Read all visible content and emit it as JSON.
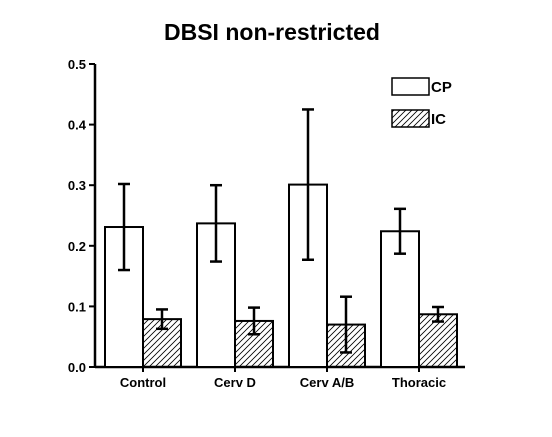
{
  "chart_data": {
    "type": "bar",
    "title": "DBSI non-restricted",
    "xlabel": "",
    "ylabel": "",
    "ylim": [
      0,
      0.5
    ],
    "yticks": [
      "0.0",
      "0.1",
      "0.2",
      "0.3",
      "0.4",
      "0.5"
    ],
    "categories": [
      "Control",
      "Cerv D",
      "Cerv A/B",
      "Thoracic"
    ],
    "series": [
      {
        "name": "CP",
        "fill": "white",
        "values": [
          0.231,
          0.237,
          0.301,
          0.224
        ],
        "errors": [
          0.071,
          0.063,
          0.124,
          0.037
        ]
      },
      {
        "name": "IC",
        "fill": "hatched",
        "values": [
          0.079,
          0.076,
          0.07,
          0.087
        ],
        "errors": [
          0.016,
          0.022,
          0.046,
          0.012
        ]
      }
    ],
    "legend": "top-right",
    "grid": false
  },
  "colors": {
    "stroke": "#000000",
    "hatch": "#000000",
    "background": "#ffffff"
  }
}
